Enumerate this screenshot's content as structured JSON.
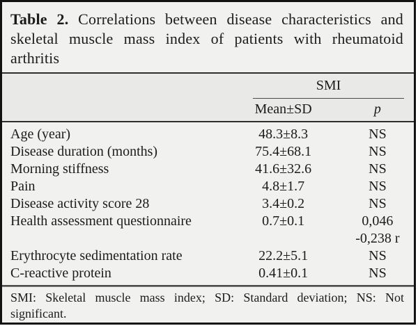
{
  "table": {
    "title_label": "Table 2.",
    "title_text": "Correlations between disease characteristics and skeletal muscle mass index of patients with rheumatoid arthritis",
    "header": {
      "group_label": "SMI",
      "col_mean_sd": "Mean±SD",
      "col_p": "p"
    },
    "rows": [
      {
        "label": "Age (year)",
        "mean_sd": "48.3±8.3",
        "p": "NS"
      },
      {
        "label": "Disease duration (months)",
        "mean_sd": "75.4±68.1",
        "p": "NS"
      },
      {
        "label": "Morning stiffness",
        "mean_sd": "41.6±32.6",
        "p": "NS"
      },
      {
        "label": "Pain",
        "mean_sd": "4.8±1.7",
        "p": "NS"
      },
      {
        "label": "Disease activity score 28",
        "mean_sd": "3.4±0.2",
        "p": "NS"
      },
      {
        "label": "Health assessment questionnaire",
        "mean_sd": "0.7±0.1",
        "p": "0,046",
        "p2": "-0,238 r"
      },
      {
        "label": "Erythrocyte sedimentation rate",
        "mean_sd": "22.2±5.1",
        "p": "NS"
      },
      {
        "label": "C-reactive protein",
        "mean_sd": "0.41±0.1",
        "p": "NS"
      }
    ],
    "footnote": "SMI: Skeletal muscle mass index; SD: Standard deviation; NS: Not significant."
  },
  "colors": {
    "card_background": "#f1f1ef",
    "header_band": "#e9e9e7",
    "frame_border": "#121212",
    "rule": "#2e2e2e",
    "text": "#1b1b1b"
  }
}
